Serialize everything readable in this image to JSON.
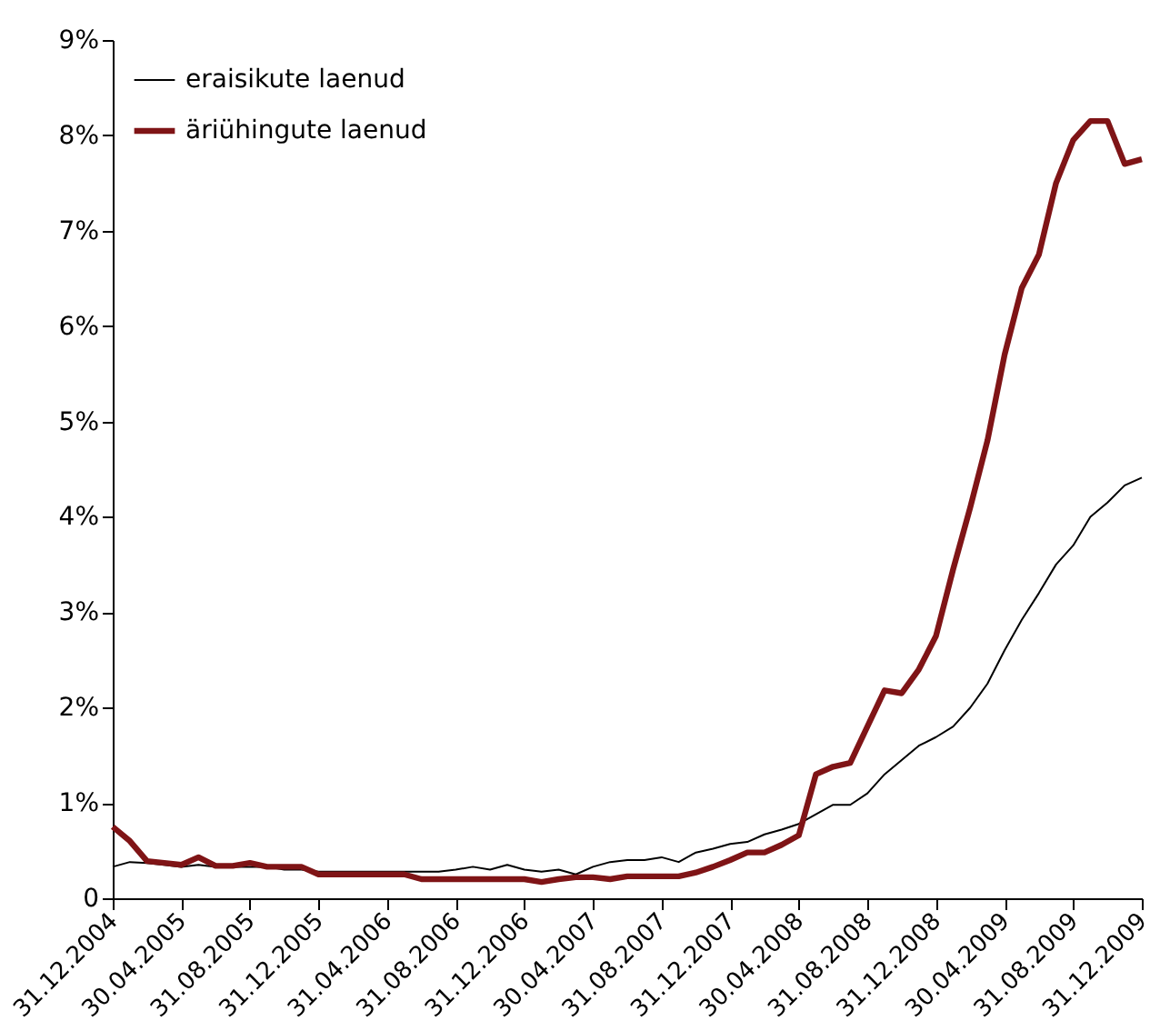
{
  "chart_data": {
    "type": "line",
    "categories": [
      "31.12.2004",
      null,
      null,
      null,
      "30.04.2005",
      null,
      null,
      null,
      "31.08.2005",
      null,
      null,
      null,
      "31.12.2005",
      null,
      null,
      null,
      "31.04.2006",
      null,
      null,
      null,
      "31.08.2006",
      null,
      null,
      null,
      "31.12.2006",
      null,
      null,
      null,
      "30.04.2007",
      null,
      null,
      null,
      "31.08.2007",
      null,
      null,
      null,
      "31.12.2007",
      null,
      null,
      null,
      "30.04.2008",
      null,
      null,
      null,
      "31.08.2008",
      null,
      null,
      null,
      "31.12.2008",
      null,
      null,
      null,
      "30.04.2009",
      null,
      null,
      null,
      "31.08.2009",
      null,
      null,
      null,
      "31.12.2009"
    ],
    "series": [
      {
        "name": "eraisikute laenud",
        "color": "#000000",
        "values": [
          0.33,
          0.38,
          0.37,
          0.35,
          0.33,
          0.35,
          0.33,
          0.33,
          0.33,
          0.33,
          0.3,
          0.3,
          0.28,
          0.28,
          0.28,
          0.28,
          0.28,
          0.28,
          0.28,
          0.28,
          0.3,
          0.33,
          0.3,
          0.35,
          0.3,
          0.28,
          0.3,
          0.25,
          0.33,
          0.38,
          0.4,
          0.4,
          0.43,
          0.38,
          0.48,
          0.52,
          0.57,
          0.59,
          0.67,
          0.72,
          0.78,
          0.88,
          0.98,
          0.98,
          1.1,
          1.3,
          1.45,
          1.6,
          1.69,
          1.8,
          2.0,
          2.25,
          2.6,
          2.92,
          3.2,
          3.5,
          3.7,
          4.0,
          4.15,
          4.33,
          4.41
        ]
      },
      {
        "name": "äriühingute laenud",
        "color": "#7f1416",
        "values": [
          0.75,
          0.6,
          0.39,
          0.37,
          0.35,
          0.43,
          0.34,
          0.34,
          0.37,
          0.33,
          0.33,
          0.33,
          0.25,
          0.25,
          0.25,
          0.25,
          0.25,
          0.25,
          0.2,
          0.2,
          0.2,
          0.2,
          0.2,
          0.2,
          0.2,
          0.17,
          0.2,
          0.22,
          0.22,
          0.2,
          0.23,
          0.23,
          0.23,
          0.23,
          0.27,
          0.33,
          0.4,
          0.48,
          0.48,
          0.56,
          0.66,
          1.3,
          1.38,
          1.42,
          1.8,
          2.18,
          2.15,
          2.4,
          2.75,
          3.45,
          4.1,
          4.8,
          5.7,
          6.4,
          6.75,
          7.5,
          7.95,
          8.15,
          8.15,
          7.7,
          7.75
        ]
      }
    ],
    "ylim": [
      0,
      9
    ],
    "yticks": [
      0,
      {
        "value": 1,
        "label": "1%"
      },
      {
        "value": 2,
        "label": "2%"
      },
      {
        "value": 3,
        "label": "3%"
      },
      {
        "value": 4,
        "label": "4%"
      },
      {
        "value": 5,
        "label": "5%"
      },
      {
        "value": 6,
        "label": "6%"
      },
      {
        "value": 7,
        "label": "7%"
      },
      {
        "value": 8,
        "label": "8%"
      },
      {
        "value": 9,
        "label": "9%"
      }
    ],
    "legend": "top left",
    "grid": false,
    "marker": "none",
    "line_style": "solid"
  }
}
